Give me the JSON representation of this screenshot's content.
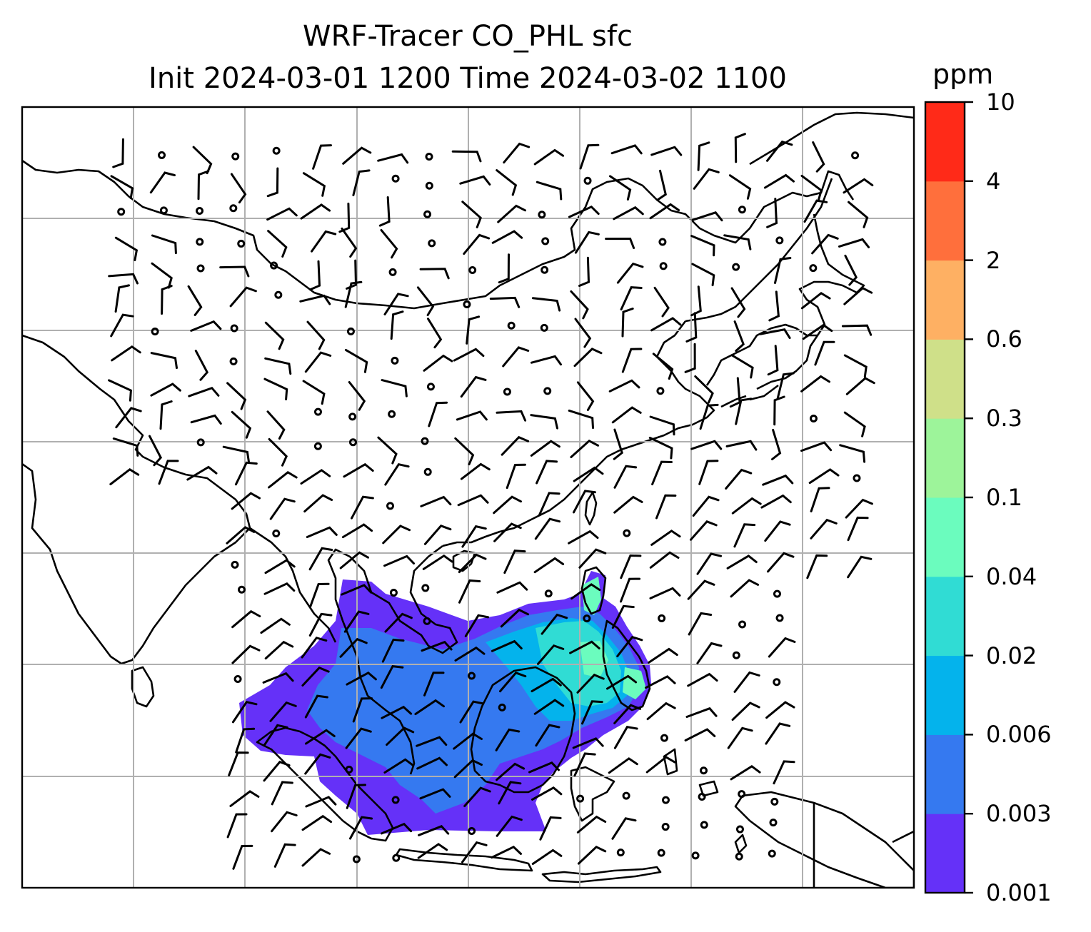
{
  "title_line1": "WRF-Tracer CO_PHL sfc",
  "title_line2": "Init 2024-03-01 1200 Time 2024-03-02 1100",
  "colorbar": {
    "unit": "ppm",
    "levels": [
      "0.001",
      "0.003",
      "0.006",
      "0.02",
      "0.04",
      "0.1",
      "0.3",
      "0.6",
      "2",
      "4",
      "10"
    ],
    "colors": [
      "#6531f8",
      "#3579f0",
      "#04b3ec",
      "#30dcd4",
      "#6bfcbe",
      "#9df49a",
      "#cfe089",
      "#feb063",
      "#ff6f3c",
      "#ff2a18"
    ]
  },
  "colors": {
    "coastline": "#000000",
    "gridline": "#b0b0b0",
    "wind_barb": "#000000"
  }
}
